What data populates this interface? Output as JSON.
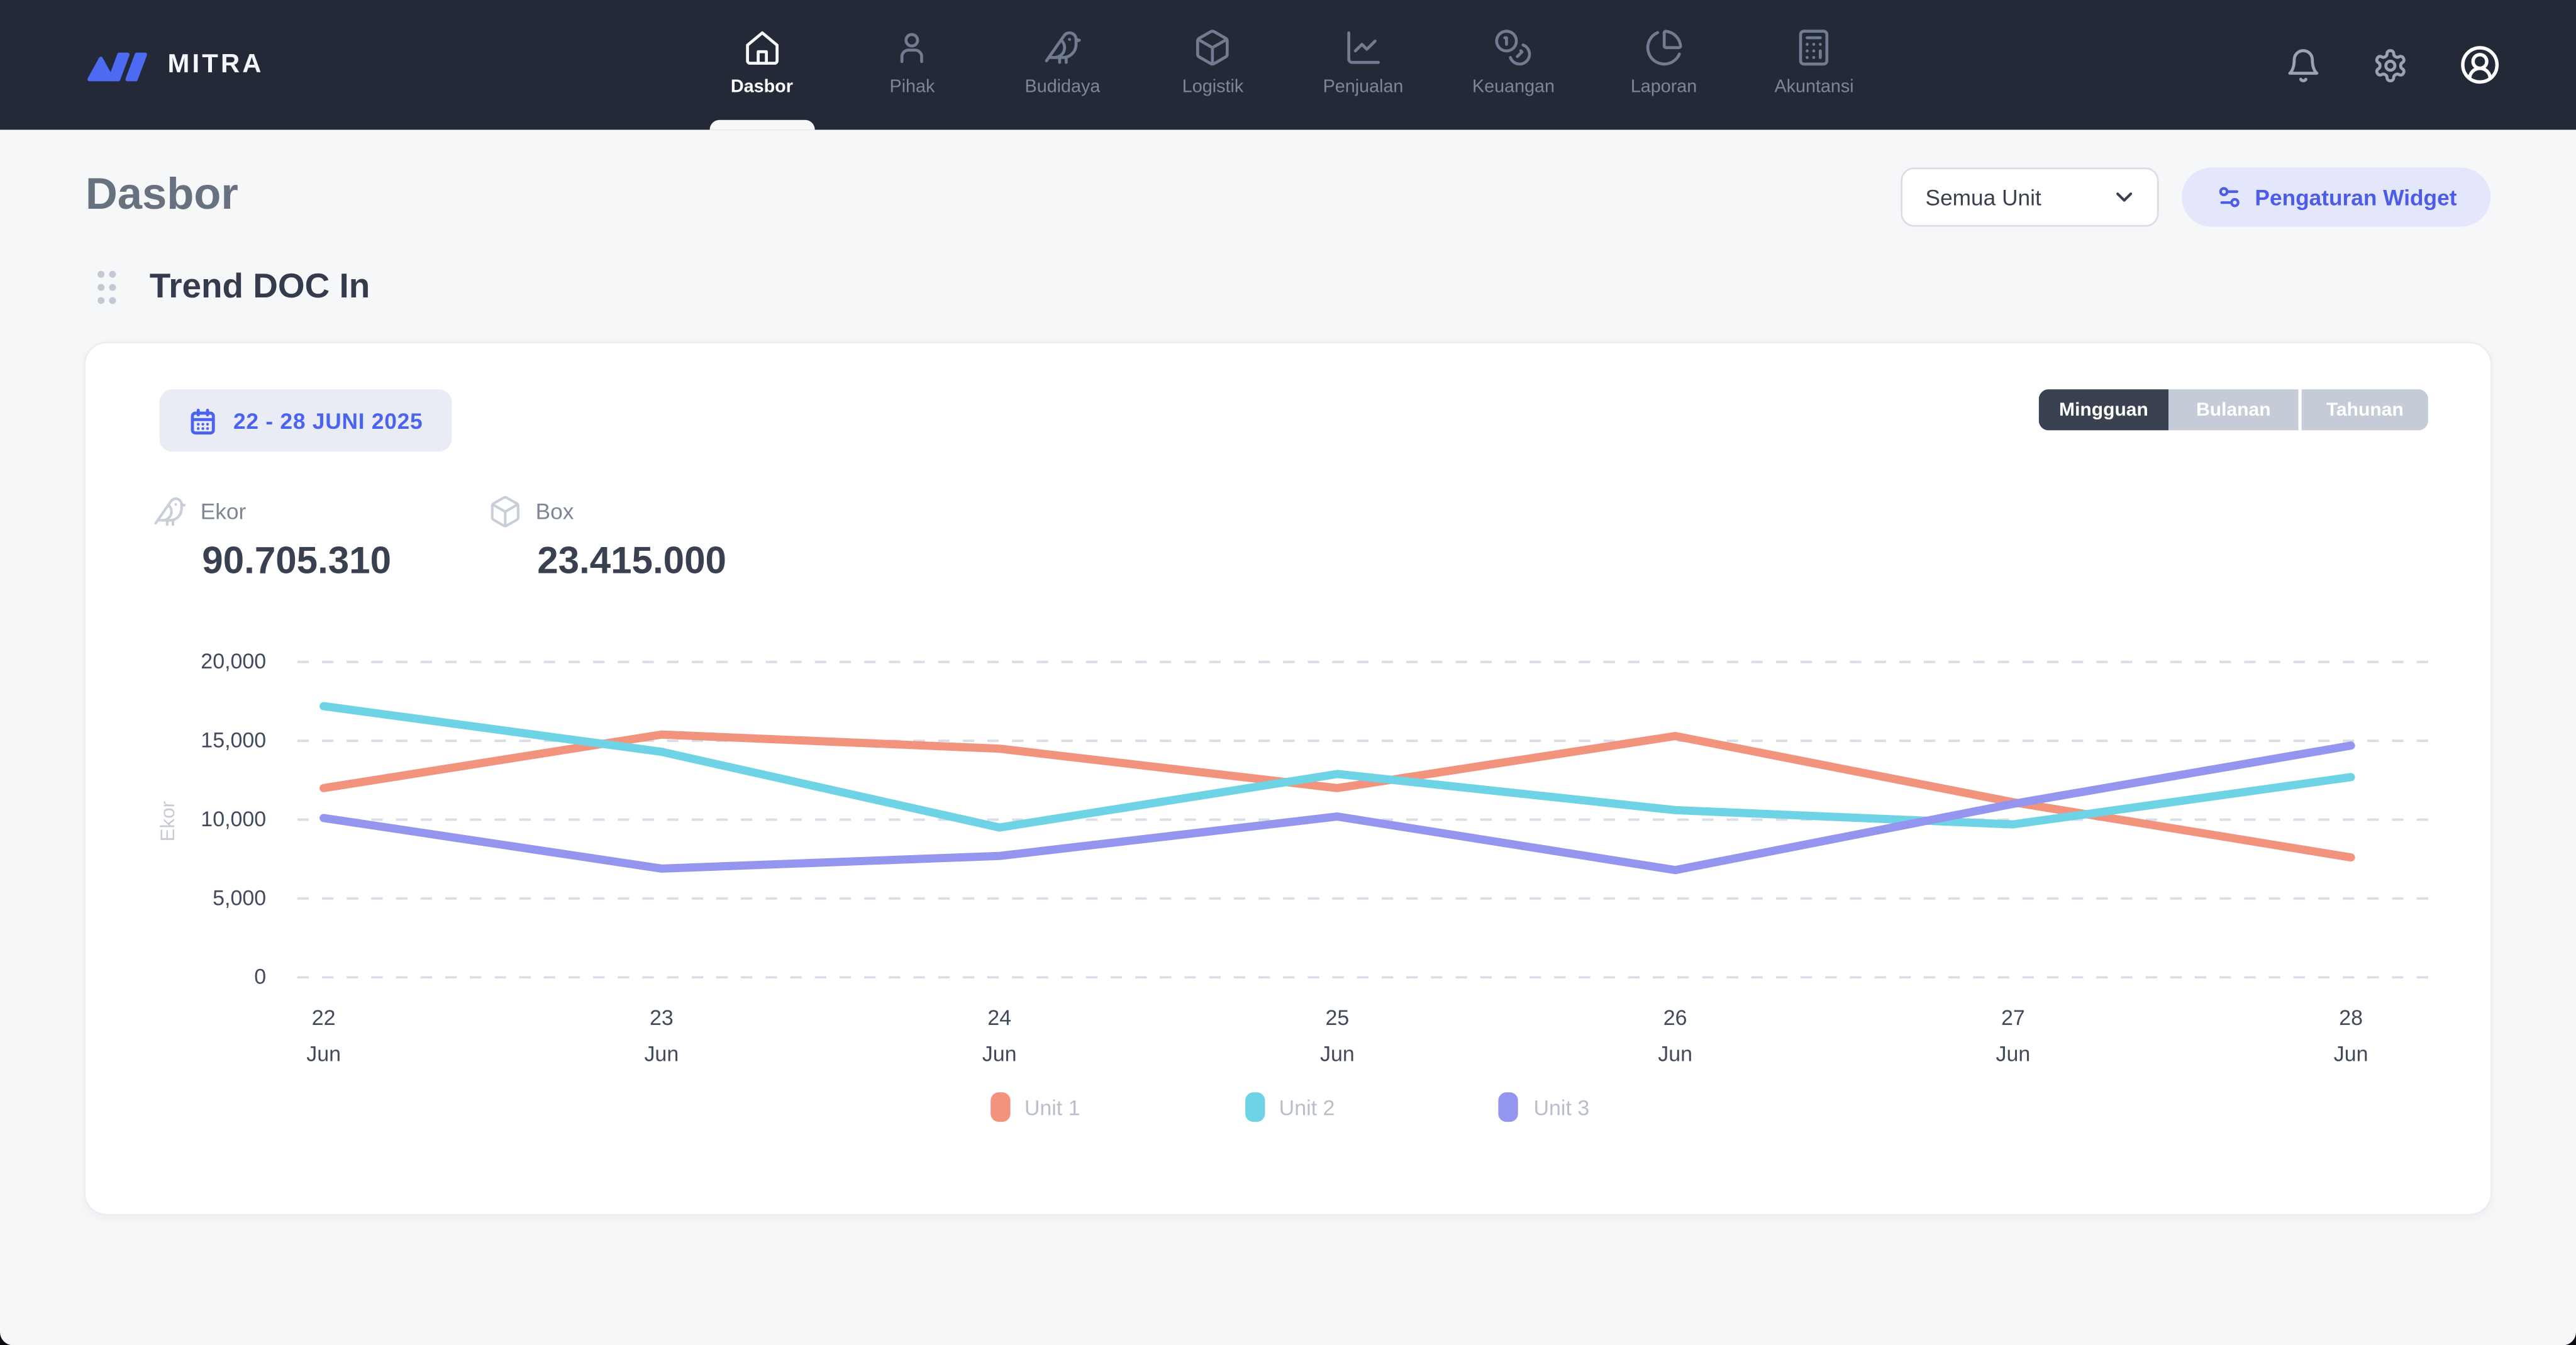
{
  "app": {
    "brand": "MITRA",
    "brand_color": "#4d6bf2",
    "navbar_bg": "#232936",
    "accent_blue": "#4a63f0"
  },
  "navbar": {
    "items": [
      {
        "label": "Dasbor",
        "icon": "home-icon",
        "active": true
      },
      {
        "label": "Pihak",
        "icon": "user-icon",
        "active": false
      },
      {
        "label": "Budidaya",
        "icon": "bird-icon",
        "active": false
      },
      {
        "label": "Logistik",
        "icon": "box-icon",
        "active": false
      },
      {
        "label": "Penjualan",
        "icon": "chart-line-icon",
        "active": false
      },
      {
        "label": "Keuangan",
        "icon": "coins-icon",
        "active": false
      },
      {
        "label": "Laporan",
        "icon": "pie-chart-icon",
        "active": false
      },
      {
        "label": "Akuntansi",
        "icon": "calculator-icon",
        "active": false
      }
    ],
    "right_tools": [
      "bell-icon",
      "gear-icon",
      "avatar-icon"
    ]
  },
  "header": {
    "title": "Dasbor",
    "unit_filter_value": "Semua Unit",
    "widget_settings_label": "Pengaturan Widget"
  },
  "widget": {
    "title": "Trend DOC In",
    "date_range": "22 - 28 JUNI 2025",
    "period_tabs": [
      {
        "label": "Mingguan",
        "active": true
      },
      {
        "label": "Bulanan",
        "active": false
      },
      {
        "label": "Tahunan",
        "active": false
      }
    ],
    "stats": [
      {
        "icon": "bird-icon",
        "label": "Ekor",
        "value": "90.705.310"
      },
      {
        "icon": "box-icon",
        "label": "Box",
        "value": "23.415.000"
      }
    ]
  },
  "chart_data": {
    "type": "line",
    "title": "Trend DOC In",
    "ylabel": "Ekor",
    "ylim": [
      0,
      20000
    ],
    "yticks": [
      0,
      5000,
      10000,
      15000,
      20000
    ],
    "ytick_labels": [
      "0",
      "5,000",
      "10,000",
      "15,000",
      "20,000"
    ],
    "grid": "dashed-horizontal",
    "legend_position": "bottom",
    "categories": [
      {
        "day": "22",
        "month": "Jun"
      },
      {
        "day": "23",
        "month": "Jun"
      },
      {
        "day": "24",
        "month": "Jun"
      },
      {
        "day": "25",
        "month": "Jun"
      },
      {
        "day": "26",
        "month": "Jun"
      },
      {
        "day": "27",
        "month": "Jun"
      },
      {
        "day": "28",
        "month": "Jun"
      }
    ],
    "series": [
      {
        "name": "Unit 1",
        "color": "#F2937E",
        "values": [
          12000,
          15400,
          14500,
          12000,
          15300,
          11100,
          7600
        ]
      },
      {
        "name": "Unit 2",
        "color": "#6FD3E6",
        "values": [
          17200,
          14300,
          9500,
          12900,
          10600,
          9700,
          12700
        ]
      },
      {
        "name": "Unit 3",
        "color": "#9495EF",
        "values": [
          10100,
          6900,
          7700,
          10200,
          6800,
          11000,
          14700
        ]
      }
    ]
  }
}
